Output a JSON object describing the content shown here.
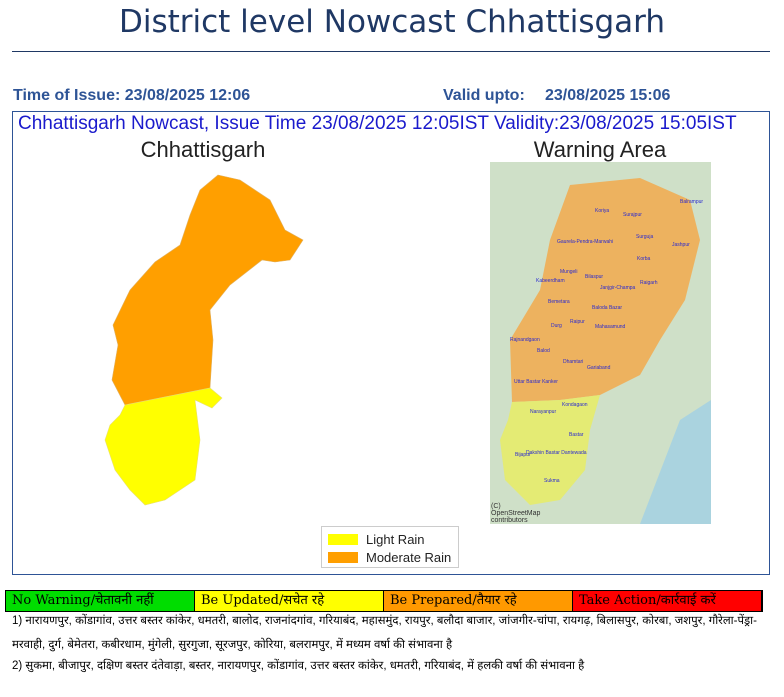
{
  "header": {
    "title": "District level Nowcast Chhattisgarh",
    "time_of_issue": "Time of Issue: 23/08/2025 12:06",
    "valid_upto_label": "Valid upto:",
    "valid_upto": "23/08/2025 15:06"
  },
  "panel": {
    "heading": "Chhattisgarh Nowcast, Issue Time 23/08/2025 12:05IST  Validity:23/08/2025 15:05IST",
    "left_title": "Chhattisgarh",
    "right_title": "Warning Area",
    "map_labels": [
      "Balrampur",
      "Koriya",
      "Surajpur",
      "Surguja",
      "Jashpur",
      "Gaurela-Pendra-Marwahi",
      "Korba",
      "Mungeli",
      "Bilaspur",
      "Kabeerdham",
      "Janjgir-Champa",
      "Raigarh",
      "Bemetara",
      "Baloda Bazar",
      "Raipur",
      "Durg",
      "Mahasamund",
      "Rajnandgaon",
      "Balod",
      "Dhamtari",
      "Gariaband",
      "Uttar Bastar Kanker",
      "Narayanpur",
      "Kondagaon",
      "Bastar",
      "Dakshin Bastar Dantewada",
      "Bijapur",
      "Sukma"
    ],
    "attribution": "(C) OpenStreetMap contributors",
    "legend": [
      {
        "label": "Light Rain",
        "color": "#ffff00"
      },
      {
        "label": "Moderate Rain",
        "color": "#ff9f00"
      }
    ]
  },
  "warning_scale": [
    {
      "label": "No Warning/चेतावनी नहीं",
      "color": "#00dd00"
    },
    {
      "label": "Be Updated/सचेत रहे",
      "color": "#ffff00"
    },
    {
      "label": "Be Prepared/तैयार रहे",
      "color": "#ff9900"
    },
    {
      "label": "Take Action/कार्रवाई करें",
      "color": "#ff0000"
    }
  ],
  "notes": [
    "1) नारायणपुर, कोंडागांव, उत्तर बस्तर कांकेर, धमतरी, बालोद, राजनांदगांव, गरियाबंद, महासमुंद, रायपुर, बलौदा बाजार, जांजगीर-चांपा, रायगढ़, बिलासपुर, कोरबा, जशपुर, गौरेला-पेंड्रा-मरवाही, दुर्ग, बेमेतरा, कबीरधाम, मुंगेली, सुरगुजा, सूरजपुर, कोरिया, बलरामपुर,  में मध्यम वर्षा की संभावना  है",
    "2) सुकमा, बीजापुर, दक्षिण बस्तर दंतेवाड़ा, बस्तर, नारायणपुर, कोंडागांव, उत्तर बस्तर कांकेर, धमतरी, गरियाबंद,  में हलकी वर्षा की संभावना  है"
  ]
}
